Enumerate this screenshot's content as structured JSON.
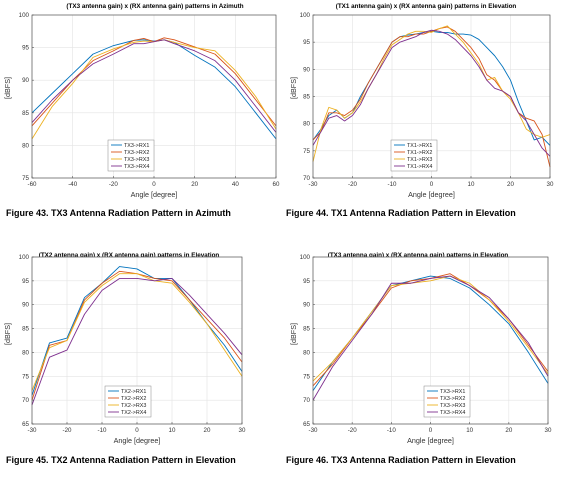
{
  "figures": [
    {
      "caption": "Figure 43. TX3 Antenna Radiation Pattern in Azimuth"
    },
    {
      "caption": "Figure 44. TX1 Antenna Radiation Pattern in Elevation"
    },
    {
      "caption": "Figure 45. TX2 Antenna Radiation Pattern in Elevation"
    },
    {
      "caption": "Figure 46. TX3 Antenna Radiation Pattern in Elevation"
    }
  ],
  "chart_data": [
    {
      "type": "line",
      "title": "(TX3 antenna gain) x (RX antenna gain) patterns in Azimuth",
      "xlabel": "Angle [degree]",
      "ylabel": "[dBFS]",
      "xlim": [
        -60,
        60
      ],
      "ylim": [
        75,
        100
      ],
      "xticks": [
        -60,
        -40,
        -20,
        0,
        20,
        40,
        60
      ],
      "yticks": [
        75,
        80,
        85,
        90,
        95,
        100
      ],
      "grid": true,
      "legend": "bottom-center",
      "x": [
        -60,
        -50,
        -40,
        -30,
        -20,
        -10,
        -5,
        0,
        5,
        10,
        20,
        30,
        40,
        50,
        60
      ],
      "series": [
        {
          "name": "TX3->RX1",
          "color": "#0072BD",
          "values": [
            85.0,
            88.0,
            91.0,
            94.0,
            95.3,
            96.1,
            96.2,
            96.0,
            96.2,
            95.8,
            93.8,
            92.0,
            89.0,
            85.0,
            81.0
          ]
        },
        {
          "name": "TX3->RX2",
          "color": "#D95319",
          "values": [
            83.0,
            86.5,
            90.0,
            93.0,
            94.5,
            96.1,
            96.4,
            95.9,
            96.5,
            96.2,
            95.1,
            94.0,
            91.0,
            87.0,
            83.0
          ]
        },
        {
          "name": "TX3->RX3",
          "color": "#EDB120",
          "values": [
            81.0,
            86.0,
            89.5,
            93.5,
            94.8,
            95.8,
            96.0,
            95.9,
            96.2,
            95.8,
            95.0,
            94.5,
            91.5,
            87.5,
            82.5
          ]
        },
        {
          "name": "TX3->RX4",
          "color": "#7E2F8E",
          "values": [
            83.5,
            87.0,
            90.0,
            92.5,
            94.0,
            95.6,
            95.6,
            95.9,
            96.2,
            95.6,
            94.5,
            93.0,
            90.0,
            86.0,
            82.0
          ]
        }
      ]
    },
    {
      "type": "line",
      "title": "(TX1 antenna gain) x (RX antenna gain) patterns in Elevation",
      "xlabel": "Angle [degree]",
      "ylabel": "[dBFS]",
      "xlim": [
        -30,
        30
      ],
      "ylim": [
        70,
        100
      ],
      "xticks": [
        -30,
        -20,
        -10,
        0,
        10,
        20,
        30
      ],
      "yticks": [
        70,
        75,
        80,
        85,
        90,
        95,
        100
      ],
      "grid": true,
      "legend": "bottom-center",
      "x": [
        -30,
        -28,
        -26,
        -24,
        -22,
        -20,
        -18,
        -16,
        -14,
        -12,
        -10,
        -8,
        -6,
        -4,
        -2,
        0,
        2,
        4,
        6,
        8,
        10,
        12,
        14,
        16,
        18,
        20,
        22,
        24,
        26,
        28,
        30
      ],
      "series": [
        {
          "name": "TX1->RX1",
          "color": "#0072BD",
          "values": [
            77.0,
            79.0,
            81.5,
            82.5,
            81.0,
            82.0,
            85.0,
            87.5,
            90.0,
            92.5,
            95.0,
            96.0,
            96.3,
            96.5,
            96.8,
            97.0,
            96.8,
            96.8,
            96.5,
            96.5,
            96.3,
            95.5,
            94.0,
            92.5,
            90.5,
            88.0,
            84.0,
            80.5,
            77.0,
            77.5,
            76.0
          ]
        },
        {
          "name": "TX1->RX2",
          "color": "#D95319",
          "values": [
            77.0,
            78.5,
            82.0,
            82.0,
            81.5,
            82.5,
            84.5,
            87.5,
            90.0,
            92.5,
            95.0,
            96.0,
            96.0,
            96.5,
            96.5,
            97.0,
            97.5,
            97.8,
            97.0,
            95.5,
            94.0,
            92.0,
            89.0,
            88.0,
            86.0,
            85.0,
            82.0,
            81.0,
            80.5,
            78.0,
            72.0
          ]
        },
        {
          "name": "TX1->RX3",
          "color": "#EDB120",
          "values": [
            73.0,
            79.0,
            83.0,
            82.5,
            81.0,
            82.0,
            84.0,
            86.5,
            89.0,
            92.0,
            94.5,
            95.5,
            96.5,
            97.0,
            97.0,
            96.8,
            97.5,
            98.0,
            96.5,
            95.0,
            93.0,
            91.0,
            88.0,
            88.5,
            86.0,
            84.5,
            82.0,
            79.0,
            78.0,
            77.5,
            78.0
          ]
        },
        {
          "name": "TX1->RX4",
          "color": "#7E2F8E",
          "values": [
            76.0,
            78.5,
            81.0,
            81.5,
            80.5,
            81.5,
            83.5,
            86.5,
            89.0,
            91.5,
            94.0,
            95.0,
            95.5,
            96.0,
            96.8,
            97.2,
            97.0,
            96.5,
            95.5,
            94.0,
            92.5,
            90.5,
            88.0,
            86.5,
            86.0,
            85.0,
            82.0,
            80.5,
            78.0,
            75.5,
            74.0
          ]
        }
      ]
    },
    {
      "type": "line",
      "title": "(TX2 antenna gain) x (RX antenna gain) patterns in Elevation",
      "xlabel": "Angle [degree]",
      "ylabel": "[dBFS]",
      "xlim": [
        -30,
        30
      ],
      "ylim": [
        65,
        100
      ],
      "xticks": [
        -30,
        -20,
        -10,
        0,
        10,
        20,
        30
      ],
      "yticks": [
        65,
        70,
        75,
        80,
        85,
        90,
        95,
        100
      ],
      "grid": true,
      "legend": "bottom-center",
      "x": [
        -30,
        -25,
        -20,
        -15,
        -10,
        -5,
        0,
        5,
        10,
        15,
        20,
        25,
        30
      ],
      "series": [
        {
          "name": "TX2->RX1",
          "color": "#0072BD",
          "values": [
            71.0,
            82.0,
            83.0,
            91.5,
            94.5,
            98.0,
            97.5,
            95.5,
            95.5,
            91.0,
            86.0,
            81.5,
            76.0
          ]
        },
        {
          "name": "TX2->RX2",
          "color": "#D95319",
          "values": [
            70.0,
            81.5,
            82.5,
            91.0,
            94.5,
            97.0,
            96.5,
            95.5,
            95.0,
            91.0,
            87.0,
            83.0,
            78.0
          ]
        },
        {
          "name": "TX2->RX3",
          "color": "#EDB120",
          "values": [
            72.0,
            81.0,
            82.5,
            90.5,
            94.0,
            96.5,
            96.5,
            95.0,
            94.5,
            90.5,
            86.0,
            80.5,
            75.0
          ]
        },
        {
          "name": "TX2->RX4",
          "color": "#7E2F8E",
          "values": [
            69.0,
            79.0,
            80.5,
            88.0,
            93.0,
            95.5,
            95.5,
            95.0,
            95.5,
            92.0,
            88.0,
            84.0,
            79.5
          ]
        }
      ]
    },
    {
      "type": "line",
      "title": "(TX3 antenna gain) x (RX antenna gain) patterns in Elevation",
      "xlabel": "Angle [degree]",
      "ylabel": "[dBFS]",
      "xlim": [
        -30,
        30
      ],
      "ylim": [
        65,
        100
      ],
      "xticks": [
        -30,
        -20,
        -10,
        0,
        10,
        20,
        30
      ],
      "yticks": [
        65,
        70,
        75,
        80,
        85,
        90,
        95,
        100
      ],
      "grid": true,
      "legend": "bottom-right",
      "x": [
        -30,
        -25,
        -20,
        -15,
        -10,
        -5,
        0,
        5,
        10,
        15,
        20,
        25,
        30
      ],
      "series": [
        {
          "name": "TX3->RX1",
          "color": "#0072BD",
          "values": [
            72.0,
            78.0,
            83.0,
            88.5,
            94.0,
            95.0,
            96.0,
            95.5,
            93.5,
            90.0,
            86.0,
            80.0,
            73.5
          ]
        },
        {
          "name": "TX3->RX2",
          "color": "#D95319",
          "values": [
            73.0,
            77.5,
            83.0,
            88.0,
            93.5,
            95.0,
            95.5,
            96.5,
            94.0,
            91.0,
            87.0,
            81.5,
            76.0
          ]
        },
        {
          "name": "TX3->RX3",
          "color": "#EDB120",
          "values": [
            74.0,
            78.0,
            83.0,
            88.5,
            94.0,
            94.5,
            95.0,
            96.0,
            94.5,
            91.0,
            86.5,
            81.0,
            75.5
          ]
        },
        {
          "name": "TX3->RX4",
          "color": "#7E2F8E",
          "values": [
            70.0,
            77.0,
            82.5,
            88.0,
            94.5,
            94.5,
            95.5,
            96.0,
            94.0,
            91.5,
            87.0,
            82.0,
            75.0
          ]
        }
      ]
    }
  ]
}
